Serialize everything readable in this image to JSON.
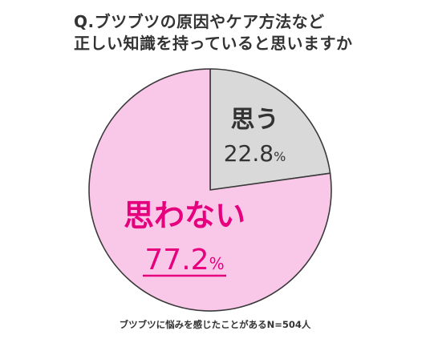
{
  "title_lines": [
    "Q.ブツブツの原因やケア方法など",
    "正しい知識を持っていると思いますか"
  ],
  "chart_data": {
    "type": "pie",
    "title": "Q.ブツブツの原因やケア方法など 正しい知識を持っていると思いますか",
    "slices": [
      {
        "label": "思う",
        "value": 22.8,
        "display": "22.8",
        "unit": "%",
        "color": "#d9d9d9"
      },
      {
        "label": "思わない",
        "value": 77.2,
        "display": "77.2",
        "unit": "%",
        "color": "#f9c8e8"
      }
    ]
  },
  "footnote": "ブツブツに悩みを感じたことがあるN=504人"
}
